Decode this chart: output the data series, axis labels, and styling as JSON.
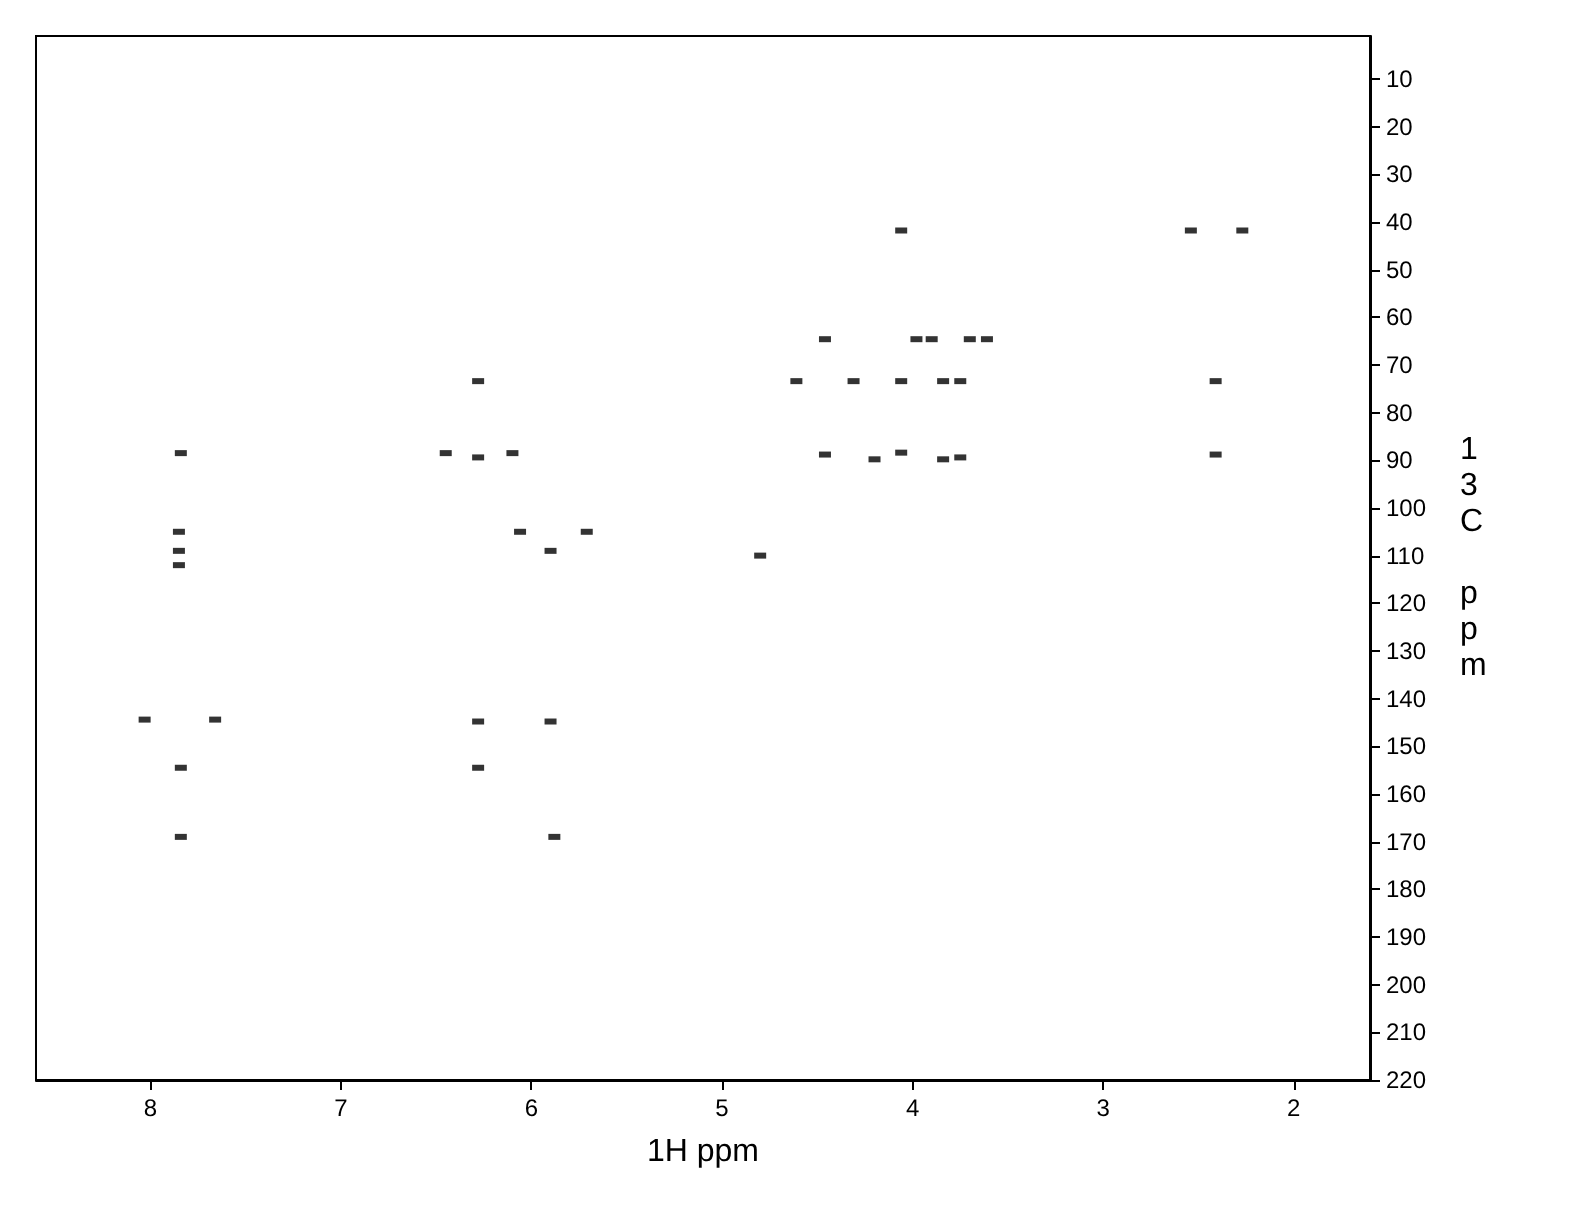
{
  "chart_data": {
    "type": "scatter",
    "xlabel": "1H ppm",
    "ylabel": "13C ppm",
    "xlim": [
      8.6,
      1.6
    ],
    "xticks": [
      8,
      7,
      6,
      5,
      4,
      3,
      2
    ],
    "ylim": [
      220,
      1
    ],
    "yticks": [
      10,
      20,
      30,
      40,
      50,
      60,
      70,
      80,
      90,
      100,
      110,
      120,
      130,
      140,
      150,
      160,
      170,
      180,
      190,
      200,
      210,
      220
    ],
    "marker": "square",
    "series": [
      {
        "color": "#000000",
        "x": [
          7.84,
          7.85,
          7.85,
          7.85,
          8.03,
          7.66,
          7.84,
          7.84,
          6.28,
          6.45,
          6.28,
          6.1,
          6.06,
          5.9,
          5.71,
          6.28,
          5.9,
          6.28,
          5.88,
          4.8,
          4.06,
          2.54,
          2.27,
          4.46,
          3.98,
          3.9,
          3.7,
          3.61,
          4.61,
          4.31,
          4.06,
          3.84,
          3.75,
          2.41,
          4.46,
          4.2,
          4.06,
          3.84,
          3.75,
          2.41
        ],
        "values": [
          88.5,
          105,
          109,
          112,
          144.4,
          144.4,
          154.5,
          169,
          73.4,
          88.5,
          89.4,
          88.5,
          105,
          109,
          105,
          144.8,
          144.8,
          154.5,
          169,
          110,
          41.8,
          41.8,
          41.8,
          64.6,
          64.6,
          64.6,
          64.6,
          64.6,
          73.4,
          73.4,
          73.4,
          73.4,
          73.4,
          73.4,
          88.8,
          89.8,
          88.4,
          89.8,
          89.4,
          88.8
        ]
      }
    ]
  }
}
